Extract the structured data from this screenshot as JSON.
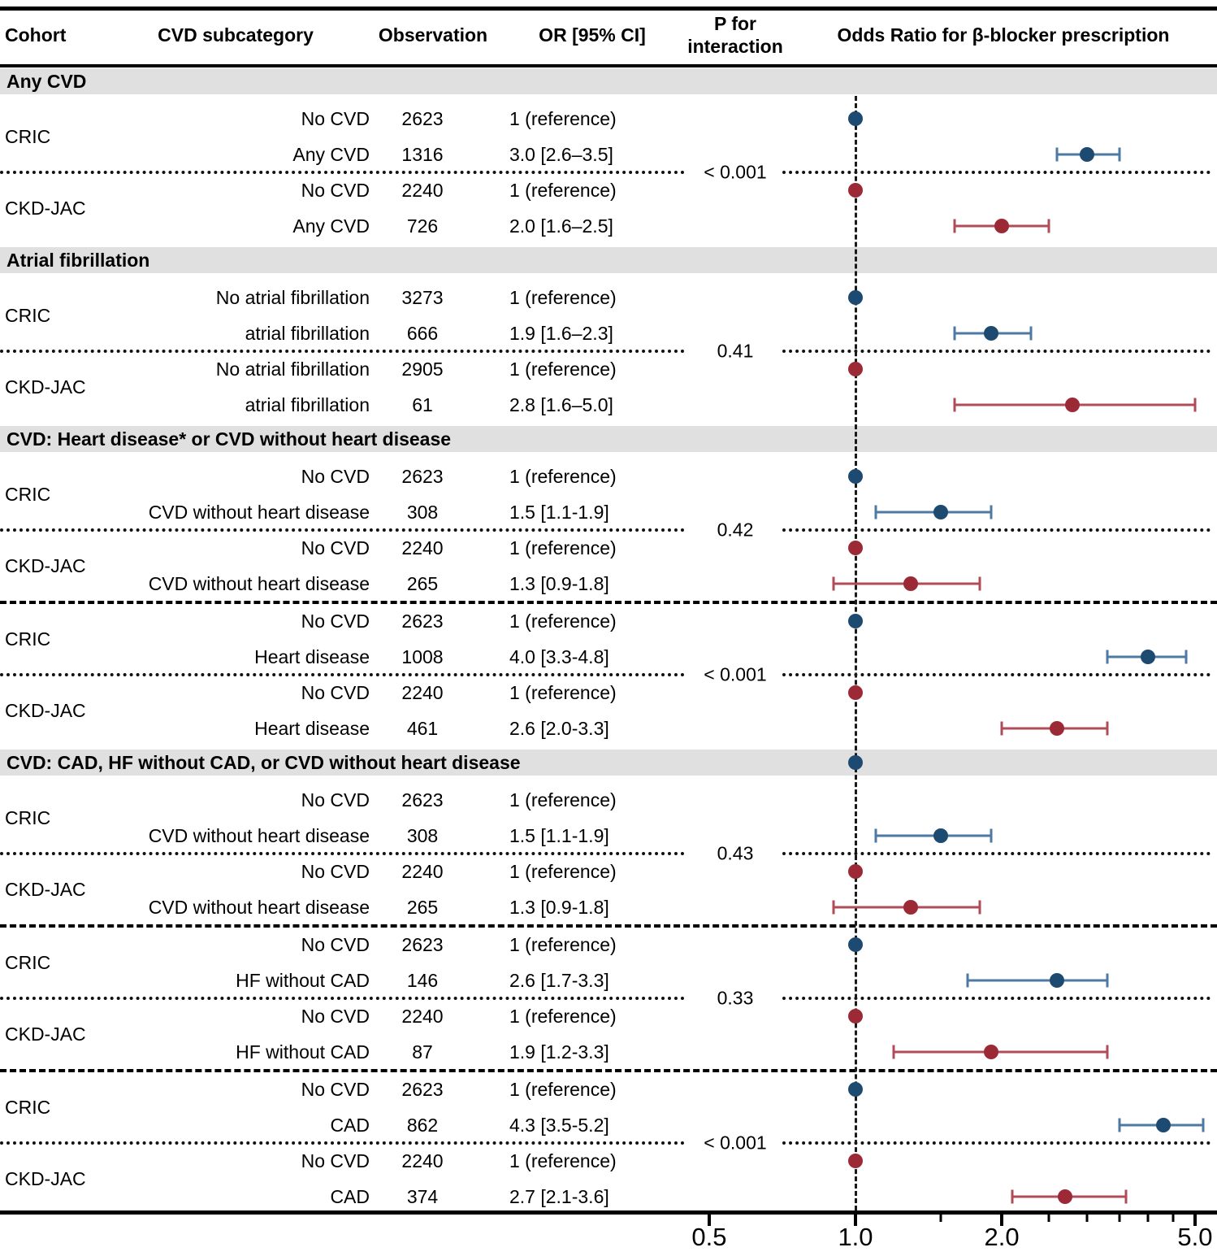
{
  "header": {
    "cohort": "Cohort",
    "subcategory": "CVD subcategory",
    "observation": "Observation",
    "or_ci": "OR [95% CI]",
    "p_line1": "P for",
    "p_line2": "interaction",
    "plot_title": "Odds Ratio for β-blocker prescription"
  },
  "colors": {
    "band": "#e0e0e0",
    "rule": "#000000",
    "CRIC": {
      "dot": "#1d4a70",
      "line": "#4e79a2"
    },
    "CKD-JAC": {
      "dot": "#9c2a36",
      "line": "#b04c57"
    }
  },
  "chart_data": {
    "type": "forest",
    "axis": {
      "scale": "log",
      "reference_line": 1.0,
      "major_ticks": [
        0.5,
        1.0,
        2.0,
        5.0
      ],
      "tick_labels": [
        "0.5",
        "1.0",
        "2.0",
        "5.0"
      ],
      "minor_ticks": [
        1.5,
        2.5,
        3.0,
        3.5,
        4.0,
        4.5
      ]
    },
    "sections": [
      {
        "title": "Any CVD",
        "blocks": [
          {
            "p_interaction": "< 0.001",
            "groups": [
              {
                "cohort": "CRIC",
                "rows": [
                  {
                    "sub": "No CVD",
                    "obs": "2623",
                    "or_text": "1 (reference)",
                    "ref": true
                  },
                  {
                    "sub": "Any CVD",
                    "obs": "1316",
                    "or_text": "3.0 [2.6–3.5]",
                    "or": 3.0,
                    "lo": 2.6,
                    "hi": 3.5
                  }
                ]
              },
              {
                "cohort": "CKD-JAC",
                "rows": [
                  {
                    "sub": "No CVD",
                    "obs": "2240",
                    "or_text": "1 (reference)",
                    "ref": true
                  },
                  {
                    "sub": "Any CVD",
                    "obs": "726",
                    "or_text": "2.0 [1.6–2.5]",
                    "or": 2.0,
                    "lo": 1.6,
                    "hi": 2.5
                  }
                ]
              }
            ]
          }
        ]
      },
      {
        "title": "Atrial fibrillation",
        "blocks": [
          {
            "p_interaction": "0.41",
            "groups": [
              {
                "cohort": "CRIC",
                "rows": [
                  {
                    "sub": "No atrial fibrillation",
                    "obs": "3273",
                    "or_text": "1 (reference)",
                    "ref": true
                  },
                  {
                    "sub": "atrial fibrillation",
                    "obs": "666",
                    "or_text": "1.9 [1.6–2.3]",
                    "or": 1.9,
                    "lo": 1.6,
                    "hi": 2.3
                  }
                ]
              },
              {
                "cohort": "CKD-JAC",
                "rows": [
                  {
                    "sub": "No atrial fibrillation",
                    "obs": "2905",
                    "or_text": "1 (reference)",
                    "ref": true
                  },
                  {
                    "sub": "atrial fibrillation",
                    "obs": "61",
                    "or_text": "2.8 [1.6–5.0]",
                    "or": 2.8,
                    "lo": 1.6,
                    "hi": 5.0
                  }
                ]
              }
            ]
          }
        ]
      },
      {
        "title": "CVD: Heart disease* or CVD without heart disease",
        "blocks": [
          {
            "p_interaction": "0.42",
            "groups": [
              {
                "cohort": "CRIC",
                "rows": [
                  {
                    "sub": "No CVD",
                    "obs": "2623",
                    "or_text": "1 (reference)",
                    "ref": true
                  },
                  {
                    "sub": "CVD without heart disease",
                    "obs": "308",
                    "or_text": "1.5 [1.1-1.9]",
                    "or": 1.5,
                    "lo": 1.1,
                    "hi": 1.9
                  }
                ]
              },
              {
                "cohort": "CKD-JAC",
                "rows": [
                  {
                    "sub": "No CVD",
                    "obs": "2240",
                    "or_text": "1 (reference)",
                    "ref": true
                  },
                  {
                    "sub": "CVD without heart disease",
                    "obs": "265",
                    "or_text": "1.3 [0.9-1.8]",
                    "or": 1.3,
                    "lo": 0.9,
                    "hi": 1.8
                  }
                ]
              }
            ]
          },
          {
            "p_interaction": "< 0.001",
            "groups": [
              {
                "cohort": "CRIC",
                "rows": [
                  {
                    "sub": "No CVD",
                    "obs": "2623",
                    "or_text": "1 (reference)",
                    "ref": true
                  },
                  {
                    "sub": "Heart disease",
                    "obs": "1008",
                    "or_text": "4.0 [3.3-4.8]",
                    "or": 4.0,
                    "lo": 3.3,
                    "hi": 4.8
                  }
                ]
              },
              {
                "cohort": "CKD-JAC",
                "rows": [
                  {
                    "sub": "No CVD",
                    "obs": "2240",
                    "or_text": "1 (reference)",
                    "ref": true
                  },
                  {
                    "sub": "Heart disease",
                    "obs": "461",
                    "or_text": "2.6 [2.0-3.3]",
                    "or": 2.6,
                    "lo": 2.0,
                    "hi": 3.3
                  }
                ]
              }
            ]
          }
        ]
      },
      {
        "title": "CVD: CAD, HF without CAD, or CVD without heart disease",
        "band_dot": {
          "cohort": "CRIC",
          "or": 1.0
        },
        "blocks": [
          {
            "p_interaction": "0.43",
            "groups": [
              {
                "cohort": "CRIC",
                "rows": [
                  {
                    "sub": "No CVD",
                    "obs": "2623",
                    "or_text": "1 (reference)",
                    "ref": true,
                    "no_dot": true
                  },
                  {
                    "sub": "CVD without heart disease",
                    "obs": "308",
                    "or_text": "1.5 [1.1-1.9]",
                    "or": 1.5,
                    "lo": 1.1,
                    "hi": 1.9
                  }
                ]
              },
              {
                "cohort": "CKD-JAC",
                "rows": [
                  {
                    "sub": "No CVD",
                    "obs": "2240",
                    "or_text": "1 (reference)",
                    "ref": true
                  },
                  {
                    "sub": "CVD without heart disease",
                    "obs": "265",
                    "or_text": "1.3 [0.9-1.8]",
                    "or": 1.3,
                    "lo": 0.9,
                    "hi": 1.8
                  }
                ]
              }
            ]
          },
          {
            "p_interaction": "0.33",
            "groups": [
              {
                "cohort": "CRIC",
                "rows": [
                  {
                    "sub": "No CVD",
                    "obs": "2623",
                    "or_text": "1 (reference)",
                    "ref": true
                  },
                  {
                    "sub": "HF without CAD",
                    "obs": "146",
                    "or_text": "2.6 [1.7-3.3]",
                    "or": 2.6,
                    "lo": 1.7,
                    "hi": 3.3
                  }
                ]
              },
              {
                "cohort": "CKD-JAC",
                "rows": [
                  {
                    "sub": "No CVD",
                    "obs": "2240",
                    "or_text": "1 (reference)",
                    "ref": true
                  },
                  {
                    "sub": "HF without CAD",
                    "obs": "87",
                    "or_text": "1.9 [1.2-3.3]",
                    "or": 1.9,
                    "lo": 1.2,
                    "hi": 3.3
                  }
                ]
              }
            ]
          },
          {
            "p_interaction": "< 0.001",
            "groups": [
              {
                "cohort": "CRIC",
                "rows": [
                  {
                    "sub": "No CVD",
                    "obs": "2623",
                    "or_text": "1 (reference)",
                    "ref": true
                  },
                  {
                    "sub": "CAD",
                    "obs": "862",
                    "or_text": "4.3 [3.5-5.2]",
                    "or": 4.3,
                    "lo": 3.5,
                    "hi": 5.2
                  }
                ]
              },
              {
                "cohort": "CKD-JAC",
                "rows": [
                  {
                    "sub": "No CVD",
                    "obs": "2240",
                    "or_text": "1 (reference)",
                    "ref": true
                  },
                  {
                    "sub": "CAD",
                    "obs": "374",
                    "or_text": "2.7 [2.1-3.6]",
                    "or": 2.7,
                    "lo": 2.1,
                    "hi": 3.6
                  }
                ]
              }
            ]
          }
        ]
      }
    ]
  }
}
